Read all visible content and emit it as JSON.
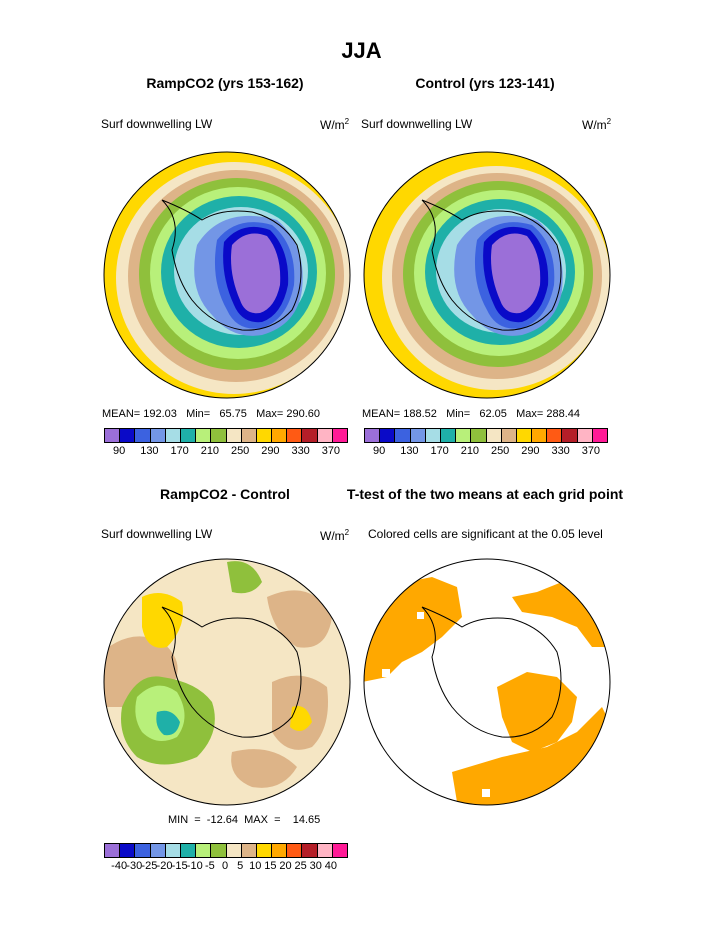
{
  "title": "JJA",
  "palette": [
    "#9b6fd8",
    "#0a0ac8",
    "#3c62e0",
    "#7396e6",
    "#a6dde6",
    "#1fb0a8",
    "#b8f07a",
    "#8fc03c",
    "#f5e6c4",
    "#ddb488",
    "#ffd800",
    "#ffa800",
    "#ff5a14",
    "#b41e28",
    "#ffb4c4",
    "#ff1a96"
  ],
  "diff_palette": [
    "#9b6fd8",
    "#0a0ac8",
    "#3c62e0",
    "#7396e6",
    "#a6dde6",
    "#1fb0a8",
    "#b8f07a",
    "#8fc03c",
    "#f5e6c4",
    "#ddb488",
    "#ffd800",
    "#ffa800",
    "#ff5a14",
    "#b41e28",
    "#ffb4c4",
    "#ff1a96"
  ],
  "panels": {
    "ramp": {
      "title": "RampCO2 (yrs 153-162)",
      "field": "Surf downwelling LW",
      "units": "W/m",
      "units_sup": "2",
      "stats": "MEAN= 192.03   Min=   65.75   Max= 290.60",
      "ticks": [
        "90",
        "130",
        "170",
        "210",
        "250",
        "290",
        "330",
        "370"
      ]
    },
    "control": {
      "title": "Control (yrs 123-141)",
      "field": "Surf downwelling LW",
      "units": "W/m",
      "units_sup": "2",
      "stats": "MEAN= 188.52   Min=   62.05   Max= 288.44",
      "ticks": [
        "90",
        "130",
        "170",
        "210",
        "250",
        "290",
        "330",
        "370"
      ]
    },
    "diff": {
      "title": "RampCO2 - Control",
      "field": "Surf downwelling LW",
      "units": "W/m",
      "units_sup": "2",
      "stats": "MIN  =  -12.64  MAX  =    14.65",
      "ticks": [
        "-40",
        "-30",
        "-25",
        "-20",
        "-15",
        "-10",
        "-5",
        "0",
        "5",
        "10",
        "15",
        "20",
        "25",
        "30",
        "40"
      ]
    },
    "ttest": {
      "title": "T-test of the two means at each grid point",
      "note": "Colored cells are significant at the 0.05 level",
      "color": "#ffa800"
    }
  }
}
